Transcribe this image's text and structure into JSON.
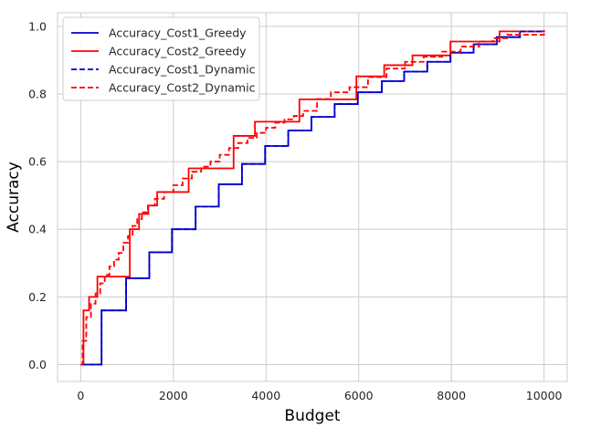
{
  "chart_data": {
    "type": "line",
    "title": "",
    "xlabel": "Budget",
    "ylabel": "Accuracy",
    "xlim": [
      -500,
      10500
    ],
    "ylim": [
      -0.05,
      1.04
    ],
    "xticks": [
      0,
      2000,
      4000,
      6000,
      8000,
      10000
    ],
    "yticks": [
      0.0,
      0.2,
      0.4,
      0.6,
      0.8,
      1.0
    ],
    "xtick_labels": [
      "0",
      "2000",
      "4000",
      "6000",
      "8000",
      "10000"
    ],
    "ytick_labels": [
      "0.0",
      "0.2",
      "0.4",
      "0.6",
      "0.8",
      "1.0"
    ],
    "grid": true,
    "legend_position": "top-left",
    "series": [
      {
        "name": "Accuracy_Cost1_Greedy",
        "color": "#0000cc",
        "linestyle": "solid",
        "step": true,
        "x": [
          0,
          450,
          980,
          1480,
          1970,
          2480,
          2980,
          3480,
          3980,
          4480,
          4980,
          5480,
          5980,
          6500,
          6980,
          7480,
          7980,
          8480,
          8980,
          9480,
          10000
        ],
        "y": [
          0.0,
          0.16,
          0.255,
          0.332,
          0.4,
          0.467,
          0.533,
          0.593,
          0.646,
          0.692,
          0.732,
          0.77,
          0.805,
          0.838,
          0.866,
          0.895,
          0.922,
          0.947,
          0.968,
          0.985,
          0.988
        ]
      },
      {
        "name": "Accuracy_Cost2_Greedy",
        "color": "#ff0000",
        "linestyle": "solid",
        "step": true,
        "x": [
          0,
          60,
          180,
          360,
          760,
          1060,
          1260,
          1460,
          1650,
          2330,
          3300,
          3760,
          4720,
          5950,
          6550,
          7160,
          7980,
          9040,
          10000
        ],
        "y": [
          0.0,
          0.16,
          0.2,
          0.26,
          0.26,
          0.4,
          0.445,
          0.47,
          0.51,
          0.58,
          0.676,
          0.718,
          0.784,
          0.852,
          0.885,
          0.914,
          0.955,
          0.985,
          0.988
        ]
      },
      {
        "name": "Accuracy_Cost1_Dynamic",
        "color": "#0000cc",
        "linestyle": "dashed",
        "step": true,
        "x": [
          0,
          450,
          980,
          1480,
          1970,
          2480,
          2980,
          3480,
          3980,
          4480,
          4980,
          5480,
          5980,
          6500,
          6980,
          7480,
          7980,
          8480,
          8980,
          9480,
          10000
        ],
        "y": [
          0.0,
          0.16,
          0.255,
          0.332,
          0.4,
          0.467,
          0.533,
          0.593,
          0.646,
          0.692,
          0.732,
          0.77,
          0.805,
          0.838,
          0.866,
          0.895,
          0.922,
          0.947,
          0.968,
          0.985,
          0.988
        ]
      },
      {
        "name": "Accuracy_Cost2_Dynamic",
        "color": "#ff0000",
        "linestyle": "dashed",
        "step": true,
        "x": [
          0,
          40,
          120,
          220,
          320,
          420,
          520,
          620,
          720,
          820,
          920,
          1020,
          1120,
          1220,
          1320,
          1450,
          1600,
          1800,
          2000,
          2200,
          2400,
          2600,
          2800,
          3000,
          3200,
          3400,
          3600,
          3800,
          4000,
          4200,
          4400,
          4600,
          4800,
          5100,
          5400,
          5800,
          6200,
          6600,
          7000,
          7400,
          7800,
          8200,
          8600,
          8900,
          9200,
          10000
        ],
        "y": [
          0.0,
          0.07,
          0.14,
          0.18,
          0.21,
          0.24,
          0.265,
          0.29,
          0.31,
          0.33,
          0.36,
          0.38,
          0.41,
          0.43,
          0.45,
          0.47,
          0.49,
          0.51,
          0.53,
          0.55,
          0.57,
          0.585,
          0.6,
          0.62,
          0.64,
          0.655,
          0.67,
          0.685,
          0.7,
          0.715,
          0.725,
          0.735,
          0.75,
          0.785,
          0.805,
          0.82,
          0.85,
          0.875,
          0.895,
          0.91,
          0.925,
          0.94,
          0.955,
          0.965,
          0.975,
          0.988
        ]
      }
    ]
  }
}
